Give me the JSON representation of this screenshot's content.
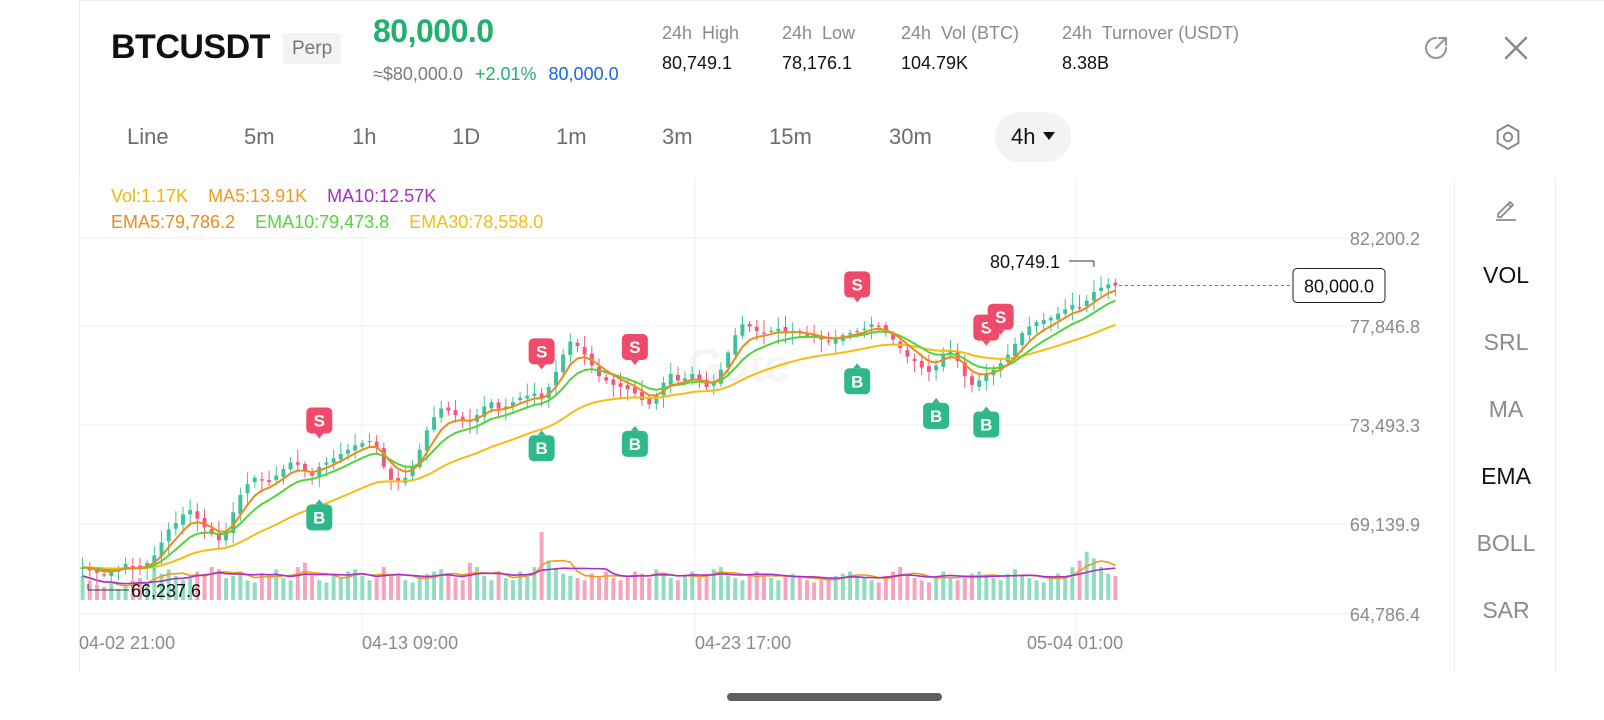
{
  "header": {
    "symbol": "BTCUSDT",
    "badge": "Perp",
    "last_price": "80,000.0",
    "approx_usd": "≈$80,000.0",
    "change_pct": "+2.01%",
    "mark_price": "80,000.0",
    "stats": [
      {
        "label": "24h  High",
        "value": "80,749.1"
      },
      {
        "label": "24h  Low",
        "value": "78,176.1"
      },
      {
        "label": "24h  Vol (BTC)",
        "value": "104.79K"
      },
      {
        "label": "24h  Turnover (USDT)",
        "value": "8.38B"
      }
    ],
    "icons": {
      "share": "share-icon",
      "close": "close-icon"
    }
  },
  "timeframes": {
    "items": [
      "Line",
      "5m",
      "1h",
      "1D",
      "1m",
      "3m",
      "15m",
      "30m"
    ],
    "active": "4h",
    "settings_icon": "settings-icon"
  },
  "legend": {
    "row1": [
      {
        "text": "Vol:1.17K",
        "color": "#f4b400"
      },
      {
        "text": "MA5:13.91K",
        "color": "#ef9a1a"
      },
      {
        "text": "MA10:12.57K",
        "color": "#a72ec9"
      }
    ],
    "row2": [
      {
        "text": "EMA5:79,786.2",
        "color": "#ef8a1a"
      },
      {
        "text": "EMA10:79,473.8",
        "color": "#52d43a"
      },
      {
        "text": "EMA30:78,558.0",
        "color": "#f5bc14"
      }
    ]
  },
  "chart_data": {
    "type": "candlestick",
    "y_ticks": [
      "82,200.2",
      "77,846.8",
      "73,493.3",
      "69,139.9",
      "64,786.4"
    ],
    "ylim": [
      64786.4,
      82200.2
    ],
    "x_ticks": [
      "04-02 21:00",
      "04-13 09:00",
      "04-23 17:00",
      "05-04 01:00"
    ],
    "current_price_label": "80,000.0",
    "current_price": 80000.0,
    "high_label": "80,749.1",
    "low_label": "66,237.6",
    "watermark": "Gate",
    "close_series": [
      66950,
      66800,
      66700,
      66600,
      66750,
      66900,
      67100,
      66950,
      66900,
      67150,
      67500,
      68100,
      68700,
      69000,
      69400,
      69600,
      69200,
      68800,
      68500,
      68200,
      68600,
      69500,
      70300,
      70800,
      71100,
      71000,
      70900,
      71200,
      71500,
      71800,
      71700,
      71400,
      71200,
      71600,
      71800,
      72000,
      72200,
      72400,
      72600,
      72700,
      72800,
      72500,
      71600,
      71000,
      70900,
      71100,
      71600,
      72400,
      73300,
      73900,
      74300,
      74200,
      74000,
      73800,
      73700,
      74000,
      74400,
      74600,
      74300,
      74400,
      74600,
      74800,
      74900,
      75000,
      74800,
      75300,
      76000,
      76800,
      77400,
      77200,
      76800,
      76300,
      75800,
      75600,
      75400,
      75300,
      75200,
      75000,
      74700,
      74500,
      74900,
      75500,
      75900,
      75600,
      75700,
      75900,
      75600,
      75300,
      75500,
      76100,
      76900,
      77700,
      78200,
      78100,
      77900,
      77800,
      77900,
      78000,
      77800,
      77900,
      77800,
      77700,
      77600,
      77500,
      77400,
      77500,
      77700,
      77800,
      77900,
      78000,
      78200,
      78100,
      77800,
      77500,
      77100,
      76700,
      76500,
      76200,
      76000,
      76300,
      76800,
      77000,
      76500,
      75800,
      75400,
      75600,
      75900,
      76100,
      76400,
      76800,
      77300,
      77800,
      78100,
      78300,
      78400,
      78500,
      78700,
      78900,
      79100,
      79000,
      79300,
      79700,
      79900,
      80050,
      80000
    ],
    "volume_series": [
      22,
      18,
      14,
      12,
      16,
      10,
      12,
      18,
      20,
      16,
      30,
      24,
      28,
      22,
      18,
      20,
      26,
      24,
      30,
      28,
      20,
      22,
      26,
      18,
      16,
      24,
      22,
      28,
      20,
      18,
      30,
      34,
      22,
      18,
      16,
      24,
      20,
      26,
      28,
      22,
      18,
      20,
      30,
      24,
      22,
      18,
      16,
      20,
      24,
      26,
      28,
      22,
      20,
      18,
      34,
      30,
      22,
      18,
      24,
      20,
      18,
      26,
      22,
      30,
      62,
      36,
      28,
      24,
      22,
      20,
      18,
      24,
      22,
      26,
      20,
      18,
      22,
      26,
      24,
      20,
      28,
      24,
      20,
      18,
      22,
      26,
      20,
      24,
      28,
      30,
      22,
      20,
      18,
      22,
      26,
      24,
      20,
      18,
      22,
      24,
      20,
      18,
      16,
      18,
      20,
      22,
      24,
      26,
      22,
      20,
      18,
      16,
      22,
      26,
      30,
      24,
      20,
      18,
      16,
      22,
      26,
      20,
      18,
      22,
      24,
      26,
      22,
      20,
      18,
      24,
      28,
      22,
      20,
      18,
      16,
      22,
      24,
      20,
      30,
      36,
      44,
      38,
      30,
      24,
      22
    ],
    "signals_buy_idx": [
      33,
      64,
      77,
      108,
      119,
      126
    ],
    "signals_sell_idx": [
      33,
      64,
      77,
      108,
      126,
      128
    ]
  },
  "indicators": {
    "items": [
      "VOL",
      "SRL",
      "MA",
      "EMA",
      "BOLL",
      "SAR"
    ],
    "active": [
      "VOL",
      "EMA"
    ],
    "pencil_icon": "pencil-icon"
  },
  "colors": {
    "up": "#3cc39a",
    "down": "#f2577d",
    "green_price": "#20b26c",
    "blue_mark": "#1b66e0",
    "ema5": "#ef8a1a",
    "ema10": "#52d43a",
    "ema30": "#f5bc14",
    "vol_ma5": "#ef9a1a",
    "vol_ma10": "#a72ec9"
  }
}
